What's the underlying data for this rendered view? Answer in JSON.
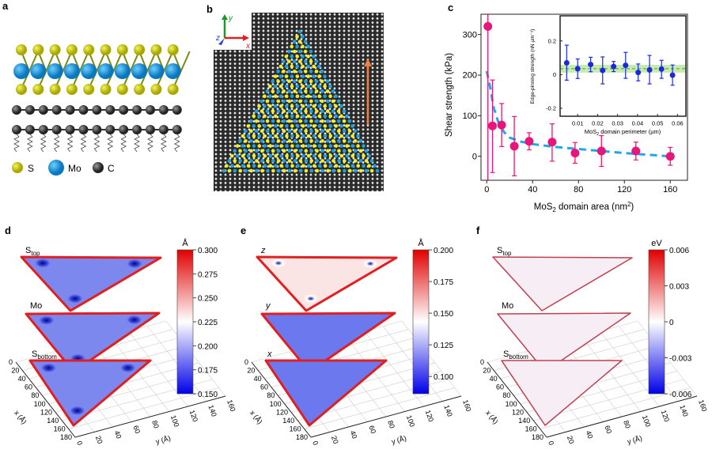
{
  "panels": {
    "a": {
      "label": "a",
      "legend": [
        "S",
        "Mo",
        "C"
      ],
      "colors": {
        "S": "#c8c800",
        "Mo": "#1ea0e0",
        "C": "#555555"
      }
    },
    "b": {
      "label": "b",
      "axes": [
        "y",
        "z",
        "x"
      ],
      "colors": {
        "x": "#e02020",
        "y": "#1a9a2a",
        "z": "#2040e0",
        "arrow": "#f08040"
      }
    },
    "c": {
      "label": "c"
    },
    "d": {
      "label": "d",
      "layers": [
        "S",
        "Mo",
        "S"
      ],
      "layer_subs": [
        "top",
        "",
        "bottom"
      ],
      "unit": "Å",
      "colorbar_ticks": [
        "0.300",
        "0.275",
        "0.250",
        "0.225",
        "0.200",
        "0.175",
        "0.150"
      ],
      "x_ticks": [
        "0",
        "20",
        "40",
        "60",
        "80",
        "100",
        "120",
        "140",
        "160",
        "180"
      ],
      "x_label": "x (Å)",
      "y_ticks": [
        "0",
        "20",
        "40",
        "60",
        "80",
        "100",
        "120",
        "140",
        "160"
      ],
      "y_label": "y (Å)"
    },
    "e": {
      "label": "e",
      "layers": [
        "z",
        "y",
        "x"
      ],
      "layer_subs": [
        "",
        "",
        ""
      ],
      "unit": "Å",
      "colorbar_ticks": [
        "0.200",
        "0.175",
        "0.150",
        "0.125",
        "0.100"
      ],
      "x_ticks": [
        "0",
        "20",
        "40",
        "60",
        "80",
        "100",
        "120",
        "140",
        "160",
        "180"
      ],
      "x_label": "x (Å)",
      "y_ticks": [
        "0",
        "20",
        "40",
        "60",
        "80",
        "100",
        "120",
        "140",
        "160"
      ],
      "y_label": "y (Å)"
    },
    "f": {
      "label": "f",
      "layers": [
        "S",
        "Mo",
        "S"
      ],
      "layer_subs": [
        "top",
        "",
        "bottom"
      ],
      "unit": "eV",
      "colorbar_ticks": [
        "0.006",
        "0.003",
        "0",
        "-0.003",
        "-0.006"
      ],
      "x_ticks": [
        "0",
        "20",
        "40",
        "60",
        "80",
        "100",
        "120",
        "140",
        "160",
        "180"
      ],
      "x_label": "x (Å)",
      "y_ticks": [
        "0",
        "20",
        "40",
        "60",
        "80",
        "100",
        "120",
        "140",
        "160"
      ],
      "y_label": "y (Å)"
    }
  },
  "chart_data": [
    {
      "type": "scatter",
      "panel": "c",
      "xlabel": "MoS2 domain area (nm2)",
      "xlabel_main": "MoS",
      "xlabel_sub": "2",
      "xlabel_rest": " domain area (nm",
      "xlabel_sup": "2",
      "xlabel_end": ")",
      "ylabel": "Shear strength (kPa)",
      "xlim": [
        -5,
        175
      ],
      "ylim": [
        -59,
        350
      ],
      "x_ticks": [
        0,
        40,
        80,
        120,
        160
      ],
      "y_ticks": [
        0,
        100,
        200,
        300
      ],
      "point_color": "#e8157a",
      "fit_color": "#1ea8e8",
      "points": [
        {
          "x": 1,
          "y": 320,
          "err_low": 400,
          "err_high": 400
        },
        {
          "x": 5,
          "y": 75,
          "err_low": 115,
          "err_high": 113
        },
        {
          "x": 13,
          "y": 77,
          "err_low": 53,
          "err_high": 53
        },
        {
          "x": 24,
          "y": 25,
          "err_low": 73,
          "err_high": 73
        },
        {
          "x": 37,
          "y": 37,
          "err_low": 21,
          "err_high": 21
        },
        {
          "x": 57,
          "y": 35,
          "err_low": 47,
          "err_high": 45
        },
        {
          "x": 77,
          "y": 8,
          "err_low": 25,
          "err_high": 26
        },
        {
          "x": 100,
          "y": 13,
          "err_low": 38,
          "err_high": 38
        },
        {
          "x": 130,
          "y": 13,
          "err_low": 22,
          "err_high": 22
        },
        {
          "x": 160,
          "y": 0,
          "err_low": 22,
          "err_high": 22
        }
      ],
      "fit": {
        "x": [
          0,
          3,
          6,
          10,
          15,
          20,
          30,
          40,
          60,
          80,
          100,
          120,
          140,
          160
        ],
        "y": [
          210,
          170,
          120,
          85,
          60,
          46,
          36,
          30,
          23,
          18,
          13,
          8,
          4,
          0
        ]
      }
    },
    {
      "type": "scatter",
      "panel": "c-inset",
      "xlabel": "MoS2 domain perimeter (µm)",
      "xlabel_main": "MoS",
      "xlabel_sub": "2",
      "xlabel_rest": " domain perimeter (µm)",
      "ylabel": "Edge-pinning strength (nN µm⁻¹)",
      "xlim": [
        0.0012,
        0.0642
      ],
      "ylim": [
        -0.247,
        0.349
      ],
      "x_ticks": [
        0.01,
        0.02,
        0.03,
        0.04,
        0.05,
        0.06
      ],
      "y_ticks": [
        -0.2,
        0,
        0.2
      ],
      "point_color": "#1a2ad8",
      "mean_color": "#33aa33",
      "band_color": "#c8eab0",
      "mean": 0.035,
      "band": [
        0.012,
        0.058
      ],
      "points": [
        {
          "x": 0.0045,
          "y": 0.07,
          "err_low": 0.103,
          "err_high": 0.105
        },
        {
          "x": 0.01,
          "y": 0.035,
          "err_low": 0.058,
          "err_high": 0.058
        },
        {
          "x": 0.0165,
          "y": 0.06,
          "err_low": 0.043,
          "err_high": 0.043
        },
        {
          "x": 0.0225,
          "y": 0.025,
          "err_low": 0.08,
          "err_high": 0.08
        },
        {
          "x": 0.028,
          "y": 0.048,
          "err_low": 0.03,
          "err_high": 0.03
        },
        {
          "x": 0.034,
          "y": 0.055,
          "err_low": 0.077,
          "err_high": 0.077
        },
        {
          "x": 0.0403,
          "y": 0.013,
          "err_low": 0.05,
          "err_high": 0.05
        },
        {
          "x": 0.046,
          "y": 0.028,
          "err_low": 0.083,
          "err_high": 0.086
        },
        {
          "x": 0.052,
          "y": 0.033,
          "err_low": 0.055,
          "err_high": 0.052
        },
        {
          "x": 0.0575,
          "y": -0.003,
          "err_low": 0.06,
          "err_high": 0.06
        }
      ]
    }
  ]
}
